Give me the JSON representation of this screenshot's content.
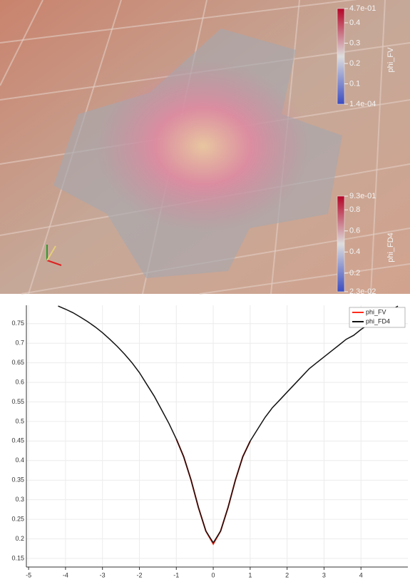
{
  "render": {
    "colorbars": [
      {
        "title": "phi_FV",
        "range": [
          0.00014,
          0.47
        ],
        "ticks": [
          {
            "value": 0.47,
            "label": "4.7e-01"
          },
          0.4,
          0.3,
          0.2,
          0.1,
          {
            "value": 0.00014,
            "label": "1.4e-04"
          }
        ]
      },
      {
        "title": "phi_FD4",
        "range": [
          0.023,
          0.93
        ],
        "ticks": [
          {
            "value": 0.93,
            "label": "9.3e-01"
          },
          0.8,
          0.6,
          0.4,
          0.2,
          {
            "value": 0.023,
            "label": "2.3e-02"
          }
        ]
      }
    ]
  },
  "chart_data": {
    "type": "line",
    "xlim": [
      -5.06,
      5.27
    ],
    "ylim": [
      0.128,
      0.797
    ],
    "xticks": [
      -5,
      -4,
      -3,
      -2,
      -1,
      0,
      1,
      2,
      3,
      4
    ],
    "yticks": [
      0.15,
      0.2,
      0.25,
      0.3,
      0.35,
      0.4,
      0.45,
      0.5,
      0.55,
      0.6,
      0.65,
      0.7,
      0.75
    ],
    "grid": true,
    "legend": "top-right",
    "series": [
      {
        "name": "phi_FV",
        "color": "#ff2a1a",
        "x": [
          -1.0,
          -0.8,
          -0.6,
          -0.4,
          -0.2,
          0.0,
          0.2,
          0.4,
          0.6,
          0.8,
          1.0
        ],
        "values": [
          0.455,
          0.41,
          0.35,
          0.28,
          0.22,
          0.187,
          0.22,
          0.28,
          0.35,
          0.41,
          0.45
        ]
      },
      {
        "name": "phi_FD4",
        "color": "#111111",
        "x": [
          -4.2,
          -4.0,
          -3.8,
          -3.6,
          -3.4,
          -3.2,
          -3.0,
          -2.8,
          -2.6,
          -2.4,
          -2.2,
          -2.0,
          -1.8,
          -1.6,
          -1.4,
          -1.2,
          -1.0,
          -0.8,
          -0.6,
          -0.4,
          -0.2,
          0.0,
          0.2,
          0.4,
          0.6,
          0.8,
          1.0,
          1.2,
          1.4,
          1.6,
          1.8,
          2.0,
          2.2,
          2.4,
          2.6,
          2.8,
          3.0,
          3.2,
          3.4,
          3.6,
          3.8,
          4.0,
          4.2,
          4.4,
          4.6,
          4.8,
          5.0
        ],
        "values": [
          0.795,
          0.787,
          0.778,
          0.767,
          0.755,
          0.742,
          0.727,
          0.71,
          0.692,
          0.672,
          0.65,
          0.625,
          0.595,
          0.565,
          0.53,
          0.495,
          0.455,
          0.41,
          0.35,
          0.28,
          0.22,
          0.19,
          0.22,
          0.28,
          0.35,
          0.41,
          0.45,
          0.48,
          0.51,
          0.535,
          0.555,
          0.575,
          0.595,
          0.615,
          0.635,
          0.65,
          0.665,
          0.68,
          0.695,
          0.71,
          0.72,
          0.735,
          0.748,
          0.76,
          0.772,
          0.783,
          0.795
        ]
      }
    ]
  }
}
